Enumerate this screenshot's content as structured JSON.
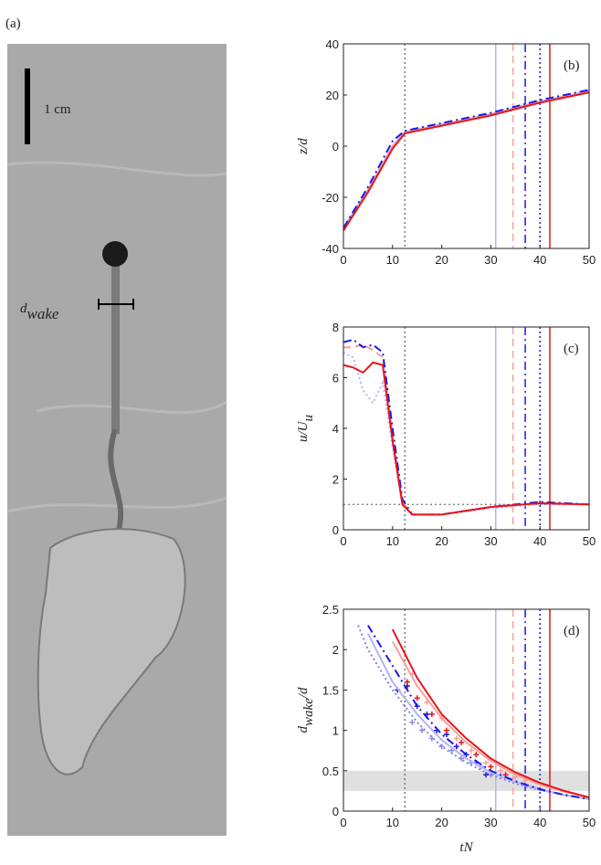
{
  "figure_label": "(a)",
  "photo": {
    "scale_label": "1 cm",
    "wake_label": {
      "main": "d",
      "sub": "wake"
    }
  },
  "chart_data": [
    {
      "type": "line",
      "panel": "(b)",
      "ylabel": [
        {
          "text": "z/d"
        }
      ],
      "xlim": [
        0,
        50
      ],
      "xticks": [
        0,
        10,
        20,
        30,
        40,
        50
      ],
      "ylim": [
        -40,
        40
      ],
      "yticks": [
        -40,
        -20,
        0,
        20,
        40
      ],
      "vlines": [
        {
          "x": 12.5,
          "color": "#777777",
          "dash": "dotted"
        },
        {
          "x": 31,
          "color": "#b4b4f2",
          "dash": "solid"
        },
        {
          "x": 34.5,
          "color": "#f5a19c",
          "dash": "dashed"
        },
        {
          "x": 37,
          "color": "#1a1ae6",
          "dash": "dashdot"
        },
        {
          "x": 40,
          "color": "#1a1ae6",
          "dash": "dotted"
        },
        {
          "x": 42,
          "color": "#e8141a",
          "dash": "solid"
        }
      ],
      "x": [
        0,
        5,
        10,
        12.5,
        20,
        30,
        40,
        50
      ],
      "series": [
        {
          "color": "#b4b4f2",
          "dash": "solid",
          "values": [
            -32,
            -17,
            0,
            5.5,
            8.5,
            12.5,
            17.5,
            21.5
          ]
        },
        {
          "color": "#f5a19c",
          "dash": "dashed",
          "values": [
            -33,
            -17,
            0,
            5.5,
            8.5,
            12.5,
            17.5,
            21.5
          ]
        },
        {
          "color": "#1a1ae6",
          "dash": "dashdot",
          "values": [
            -32,
            -16,
            2,
            6,
            9,
            13,
            18,
            22
          ]
        },
        {
          "color": "#e8141a",
          "dash": "solid",
          "values": [
            -33,
            -18,
            -1,
            5,
            8,
            12,
            17,
            21
          ]
        }
      ]
    },
    {
      "type": "line",
      "panel": "(c)",
      "ylabel": [
        {
          "text": "u/U"
        },
        {
          "text": "u",
          "sub": true
        }
      ],
      "xlim": [
        0,
        50
      ],
      "xticks": [
        0,
        10,
        20,
        30,
        40,
        50
      ],
      "ylim": [
        0,
        8
      ],
      "yticks": [
        0,
        2,
        4,
        6,
        8
      ],
      "hlines": [
        {
          "y": 1,
          "color": "#777777",
          "dash": "dotted"
        }
      ],
      "vlines": [
        {
          "x": 12.5,
          "color": "#777777",
          "dash": "dotted"
        },
        {
          "x": 31,
          "color": "#b4b4f2",
          "dash": "solid"
        },
        {
          "x": 34.5,
          "color": "#f5a19c",
          "dash": "dashed"
        },
        {
          "x": 37,
          "color": "#1a1ae6",
          "dash": "dashdot"
        },
        {
          "x": 40,
          "color": "#1a1ae6",
          "dash": "dotted"
        },
        {
          "x": 42,
          "color": "#e8141a",
          "dash": "solid"
        }
      ],
      "x": [
        0,
        2,
        4,
        6,
        8,
        10,
        12,
        14,
        20,
        30,
        40,
        50
      ],
      "series": [
        {
          "color": "#b4b4f2",
          "dash": "dotted",
          "values": [
            7.0,
            6.8,
            5.5,
            5.0,
            5.8,
            3.3,
            1.0,
            0.6,
            0.6,
            0.85,
            1.0,
            1.0
          ]
        },
        {
          "color": "#f5a19c",
          "dash": "dashed",
          "values": [
            7.2,
            7.2,
            7.3,
            7.1,
            6.8,
            3.8,
            1.1,
            0.6,
            0.6,
            0.9,
            1.05,
            1.0
          ]
        },
        {
          "color": "#1a1ae6",
          "dash": "dashdot",
          "values": [
            7.4,
            7.5,
            7.2,
            7.3,
            7.0,
            4.0,
            1.2,
            0.6,
            0.6,
            0.9,
            1.1,
            1.0
          ]
        },
        {
          "color": "#e8141a",
          "dash": "solid",
          "values": [
            6.5,
            6.4,
            6.2,
            6.6,
            6.5,
            3.5,
            1.0,
            0.6,
            0.6,
            0.9,
            1.05,
            1.0
          ]
        }
      ]
    },
    {
      "type": "line",
      "panel": "(d)",
      "ylabel": [
        {
          "text": "d"
        },
        {
          "text": "wake",
          "sub": true
        },
        {
          "text": "/d"
        }
      ],
      "xlabel": "tN",
      "xlim": [
        0,
        50
      ],
      "xticks": [
        0,
        10,
        20,
        30,
        40,
        50
      ],
      "ylim": [
        0,
        2.5
      ],
      "yticks": [
        0,
        0.5,
        1,
        1.5,
        2,
        2.5
      ],
      "band": [
        0.25,
        0.5
      ],
      "vlines": [
        {
          "x": 12.5,
          "color": "#777777",
          "dash": "dotted"
        },
        {
          "x": 31,
          "color": "#b4b4f2",
          "dash": "solid"
        },
        {
          "x": 34.5,
          "color": "#f5a19c",
          "dash": "dashed"
        },
        {
          "x": 37,
          "color": "#1a1ae6",
          "dash": "dashdot"
        },
        {
          "x": 40,
          "color": "#1a1ae6",
          "dash": "dotted"
        },
        {
          "x": 42,
          "color": "#e8141a",
          "dash": "solid"
        }
      ],
      "x": [
        3,
        5,
        10,
        15,
        20,
        25,
        30,
        35,
        40,
        45,
        50
      ],
      "series": [
        {
          "color": "#8080e8",
          "dash": "dotted",
          "values": [
            2.3,
            2.0,
            1.5,
            1.1,
            0.8,
            0.6,
            0.45,
            0.34,
            0.26,
            0.2,
            0.15
          ]
        },
        {
          "color": "#b4b4f2",
          "dash": "solid",
          "values": [
            null,
            2.2,
            1.6,
            1.2,
            0.88,
            0.65,
            0.48,
            0.36,
            0.27,
            0.2,
            0.15
          ]
        },
        {
          "color": "#f5a19c",
          "dash": "solid",
          "values": [
            null,
            null,
            2.1,
            1.55,
            1.15,
            0.85,
            0.62,
            0.45,
            0.33,
            0.24,
            0.17
          ]
        },
        {
          "color": "#1a1ae6",
          "dash": "dashdot",
          "values": [
            null,
            2.3,
            1.8,
            1.3,
            0.95,
            0.7,
            0.5,
            0.37,
            0.27,
            0.2,
            0.15
          ]
        },
        {
          "color": "#e8141a",
          "dash": "solid",
          "values": [
            null,
            null,
            2.25,
            1.65,
            1.2,
            0.9,
            0.65,
            0.48,
            0.35,
            0.25,
            0.17
          ]
        }
      ],
      "points": [
        {
          "color": "#8a8ae8",
          "x": [
            14,
            16,
            18,
            20,
            22,
            24,
            26,
            28,
            30
          ],
          "y": [
            1.1,
            1.0,
            0.9,
            0.8,
            0.75,
            0.65,
            0.6,
            0.55,
            0.45
          ]
        },
        {
          "color": "#1a1ae6",
          "x": [
            11,
            13,
            15,
            17,
            19,
            21,
            23,
            25,
            27,
            29
          ],
          "y": [
            1.5,
            1.55,
            1.3,
            1.2,
            1.0,
            0.95,
            0.8,
            0.7,
            0.6,
            0.45
          ]
        },
        {
          "color": "#f5a19c",
          "x": [
            14,
            17,
            20,
            23,
            26,
            29,
            32,
            35,
            37
          ],
          "y": [
            1.7,
            1.35,
            1.15,
            0.9,
            0.75,
            0.6,
            0.5,
            0.42,
            0.38
          ]
        },
        {
          "color": "#e8141a",
          "x": [
            13,
            15,
            18,
            21,
            24,
            27,
            30,
            33
          ],
          "y": [
            1.6,
            1.4,
            1.2,
            1.0,
            0.85,
            0.7,
            0.55,
            0.45
          ]
        }
      ]
    }
  ]
}
